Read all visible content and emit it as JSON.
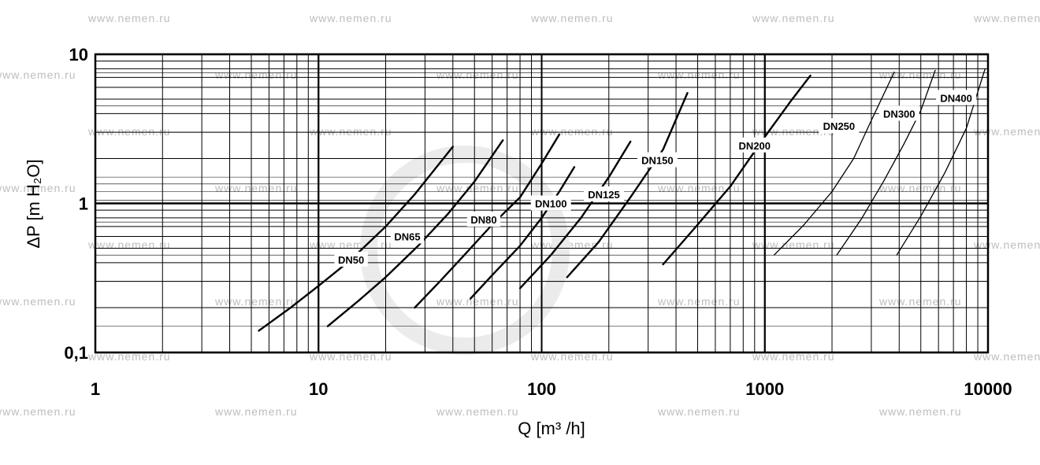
{
  "chart_data": {
    "type": "line",
    "title": "",
    "xlabel": "Q [m³ /h]",
    "ylabel": "ΔP [m H₂O]",
    "xscale": "log",
    "yscale": "log",
    "xlim": [
      1,
      10000
    ],
    "ylim": [
      0.1,
      10
    ],
    "grid": true,
    "x_tick_labels": [
      "1",
      "10",
      "100",
      "1000",
      "10000"
    ],
    "y_tick_labels": [
      "0,1",
      "1",
      "10"
    ],
    "legend": "inline labels",
    "series": [
      {
        "name": "DN50",
        "x": [
          5.4,
          7.5,
          10,
          14,
          20,
          27,
          40
        ],
        "y": [
          0.14,
          0.2,
          0.28,
          0.42,
          0.7,
          1.15,
          2.4
        ]
      },
      {
        "name": "DN65",
        "x": [
          11,
          15,
          20,
          28,
          38,
          50,
          67
        ],
        "y": [
          0.15,
          0.22,
          0.32,
          0.52,
          0.85,
          1.4,
          2.65
        ]
      },
      {
        "name": "DN80",
        "x": [
          27,
          35,
          45,
          60,
          80,
          100,
          120
        ],
        "y": [
          0.2,
          0.3,
          0.45,
          0.72,
          1.1,
          1.85,
          2.9
        ]
      },
      {
        "name": "DN100",
        "x": [
          48,
          60,
          80,
          100,
          120,
          140
        ],
        "y": [
          0.23,
          0.33,
          0.52,
          0.8,
          1.2,
          1.75
        ]
      },
      {
        "name": "DN125",
        "x": [
          80,
          110,
          150,
          200,
          250
        ],
        "y": [
          0.27,
          0.45,
          0.8,
          1.5,
          2.6
        ]
      },
      {
        "name": "DN150",
        "x": [
          130,
          180,
          250,
          350,
          450
        ],
        "y": [
          0.32,
          0.55,
          1.1,
          2.3,
          5.5
        ]
      },
      {
        "name": "DN200",
        "x": [
          350,
          500,
          700,
          1000,
          1300,
          1600
        ],
        "y": [
          0.39,
          0.72,
          1.3,
          2.8,
          4.8,
          7.2
        ]
      },
      {
        "name": "DN250",
        "x": [
          1100,
          1500,
          2000,
          2500,
          3000,
          3800
        ],
        "y": [
          0.45,
          0.72,
          1.2,
          2.0,
          3.6,
          7.6
        ]
      },
      {
        "name": "DN300",
        "x": [
          2100,
          2700,
          3400,
          4200,
          5000,
          5800
        ],
        "y": [
          0.45,
          0.78,
          1.4,
          2.5,
          4.2,
          7.8
        ]
      },
      {
        "name": "DN400",
        "x": [
          3900,
          5000,
          6400,
          8000,
          9700
        ],
        "y": [
          0.45,
          0.82,
          1.6,
          3.2,
          8.0
        ]
      }
    ]
  },
  "watermark": {
    "text": "www.nemen.ru"
  },
  "style": {
    "line_color": "#000000",
    "grid_color": "#000000",
    "watermark_color": "#bdbdbd",
    "background": "#ffffff"
  }
}
